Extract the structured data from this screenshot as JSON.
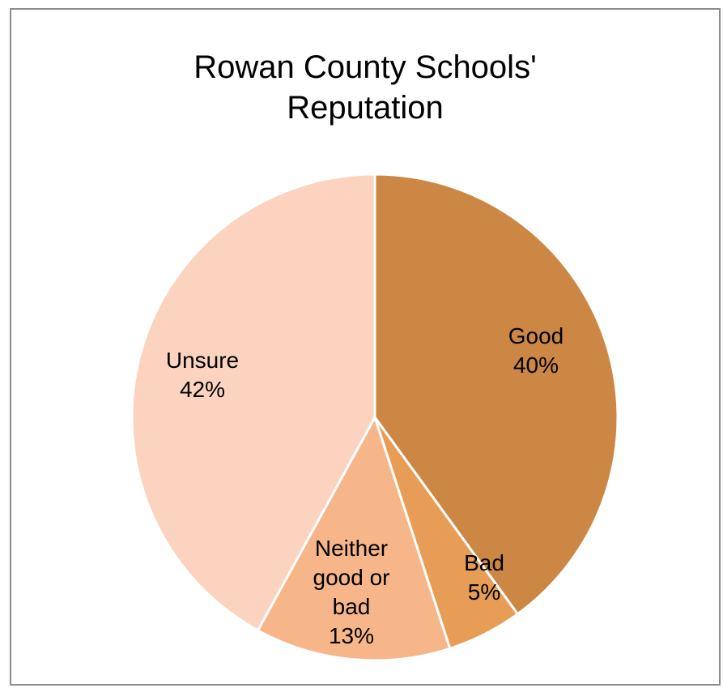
{
  "chart_data": {
    "type": "pie",
    "title_lines": [
      "Rowan County Schools'",
      "Reputation"
    ],
    "slices": [
      {
        "name": "Good",
        "value": 40,
        "label_lines": [
          "Good",
          "40%"
        ],
        "color": "#CD8744"
      },
      {
        "name": "Bad",
        "value": 5,
        "label_lines": [
          "Bad",
          "5%"
        ],
        "color": "#E89D56"
      },
      {
        "name": "Neither good or bad",
        "value": 13,
        "label_lines": [
          "Neither",
          "good or",
          "bad",
          "13%"
        ],
        "color": "#F7B68A"
      },
      {
        "name": "Unsure",
        "value": 42,
        "label_lines": [
          "Unsure",
          "42%"
        ],
        "color": "#FBD3BF"
      }
    ],
    "start": "12 o'clock",
    "direction": "clockwise",
    "legend": "none"
  }
}
